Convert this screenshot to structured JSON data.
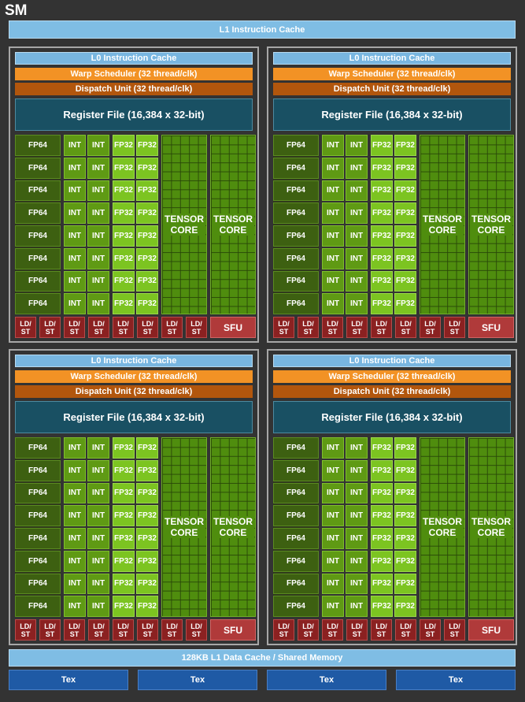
{
  "sm_label": "SM",
  "l1_instruction_cache": "L1 Instruction Cache",
  "partition": {
    "l0_cache": "L0 Instruction Cache",
    "warp_scheduler": "Warp Scheduler (32 thread/clk)",
    "dispatch_unit": "Dispatch Unit (32 thread/clk)",
    "register_file": "Register File (16,384 x 32-bit)",
    "fp64": "FP64",
    "int": "INT",
    "fp32": "FP32",
    "tensor_line1": "TENSOR",
    "tensor_line2": "CORE",
    "ldst_line1": "LD/",
    "ldst_line2": "ST",
    "sfu": "SFU"
  },
  "l1_data_cache": "128KB L1 Data Cache / Shared Memory",
  "tex_units": [
    "Tex",
    "Tex",
    "Tex",
    "Tex"
  ],
  "colors": {
    "cache_blue": "#7fbde4",
    "warp_orange": "#f29225",
    "dispatch_brown": "#b2560d",
    "register_teal": "#195063",
    "fp64_green": "#3d6011",
    "int_green": "#5f9a14",
    "fp32_green": "#7cc421",
    "tensor_green": "#4f8d0e",
    "ldst_red": "#8b2121",
    "sfu_red": "#b03a3a",
    "tex_blue": "#1f5aa5"
  }
}
